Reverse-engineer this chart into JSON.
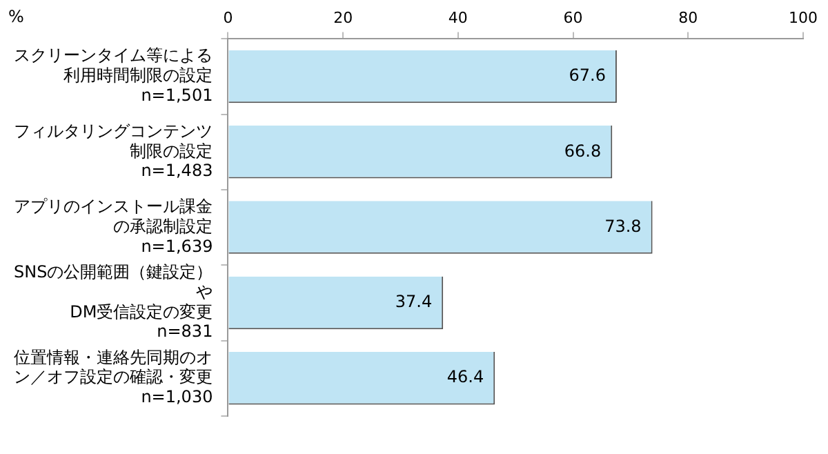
{
  "chart_data": {
    "type": "bar",
    "orientation": "horizontal",
    "xlabel": "%",
    "categories": [
      "スクリーンタイム等による利用時間制限の設定\nn=1,501",
      "フィルタリングコンテンツ制限の設定\nn=1,483",
      "アプリのインストール課金の承認制設定\nn=1,639",
      "SNSの公開範囲（鍵設定）や\nDM受信設定の変更\nn=831",
      "位置情報・連絡先同期のオン／オフ設定の確認・変更\nn=1,030"
    ],
    "values": [
      67.6,
      66.8,
      73.8,
      37.4,
      46.4
    ],
    "color": "#bfe4f4",
    "xlim": [
      0,
      100
    ],
    "xticks": [
      0,
      20,
      40,
      60,
      80,
      100
    ],
    "grid": false,
    "legend": false,
    "data_labels": true
  }
}
